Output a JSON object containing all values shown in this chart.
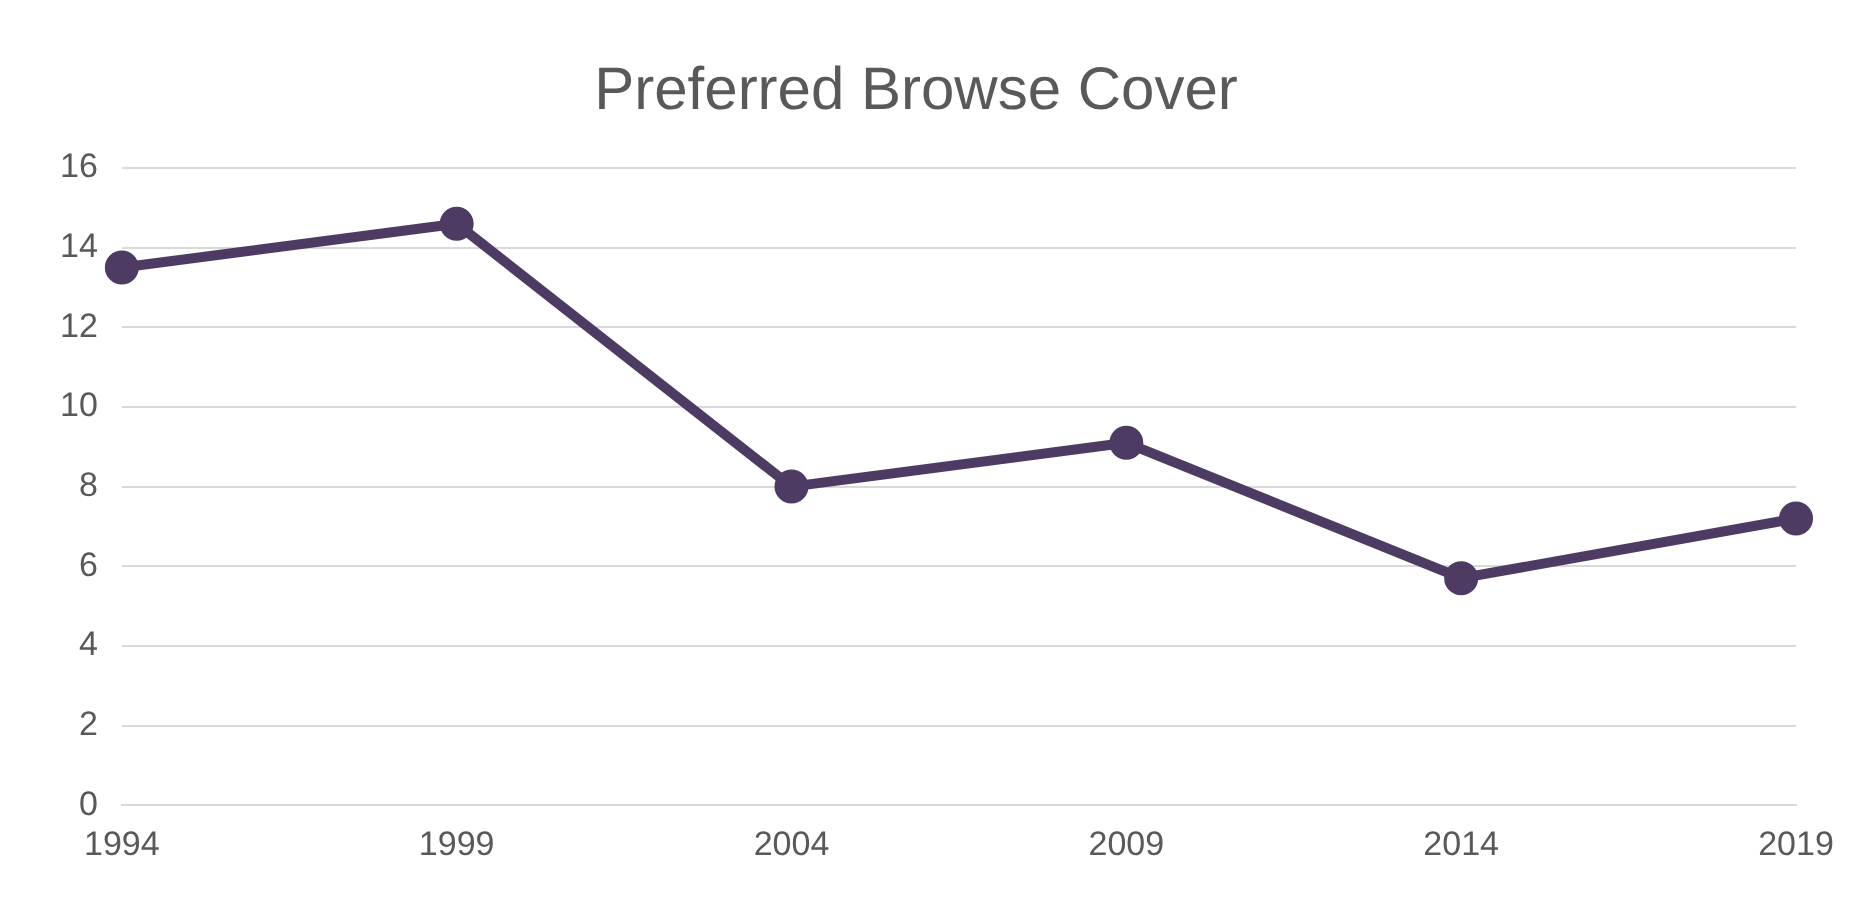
{
  "chart_data": {
    "type": "line",
    "title": "Preferred Browse Cover",
    "categories": [
      "1994",
      "1999",
      "2004",
      "2009",
      "2014",
      "2019"
    ],
    "series": [
      {
        "color": "#4e3b63",
        "values": [
          13.5,
          14.6,
          8.0,
          9.1,
          5.7,
          7.2
        ]
      }
    ],
    "ylim": [
      0,
      16
    ],
    "yticks": [
      0,
      2,
      4,
      6,
      8,
      10,
      12,
      14,
      16
    ],
    "grid": "y",
    "legend": false,
    "marker": "circle",
    "line_style": "solid"
  }
}
